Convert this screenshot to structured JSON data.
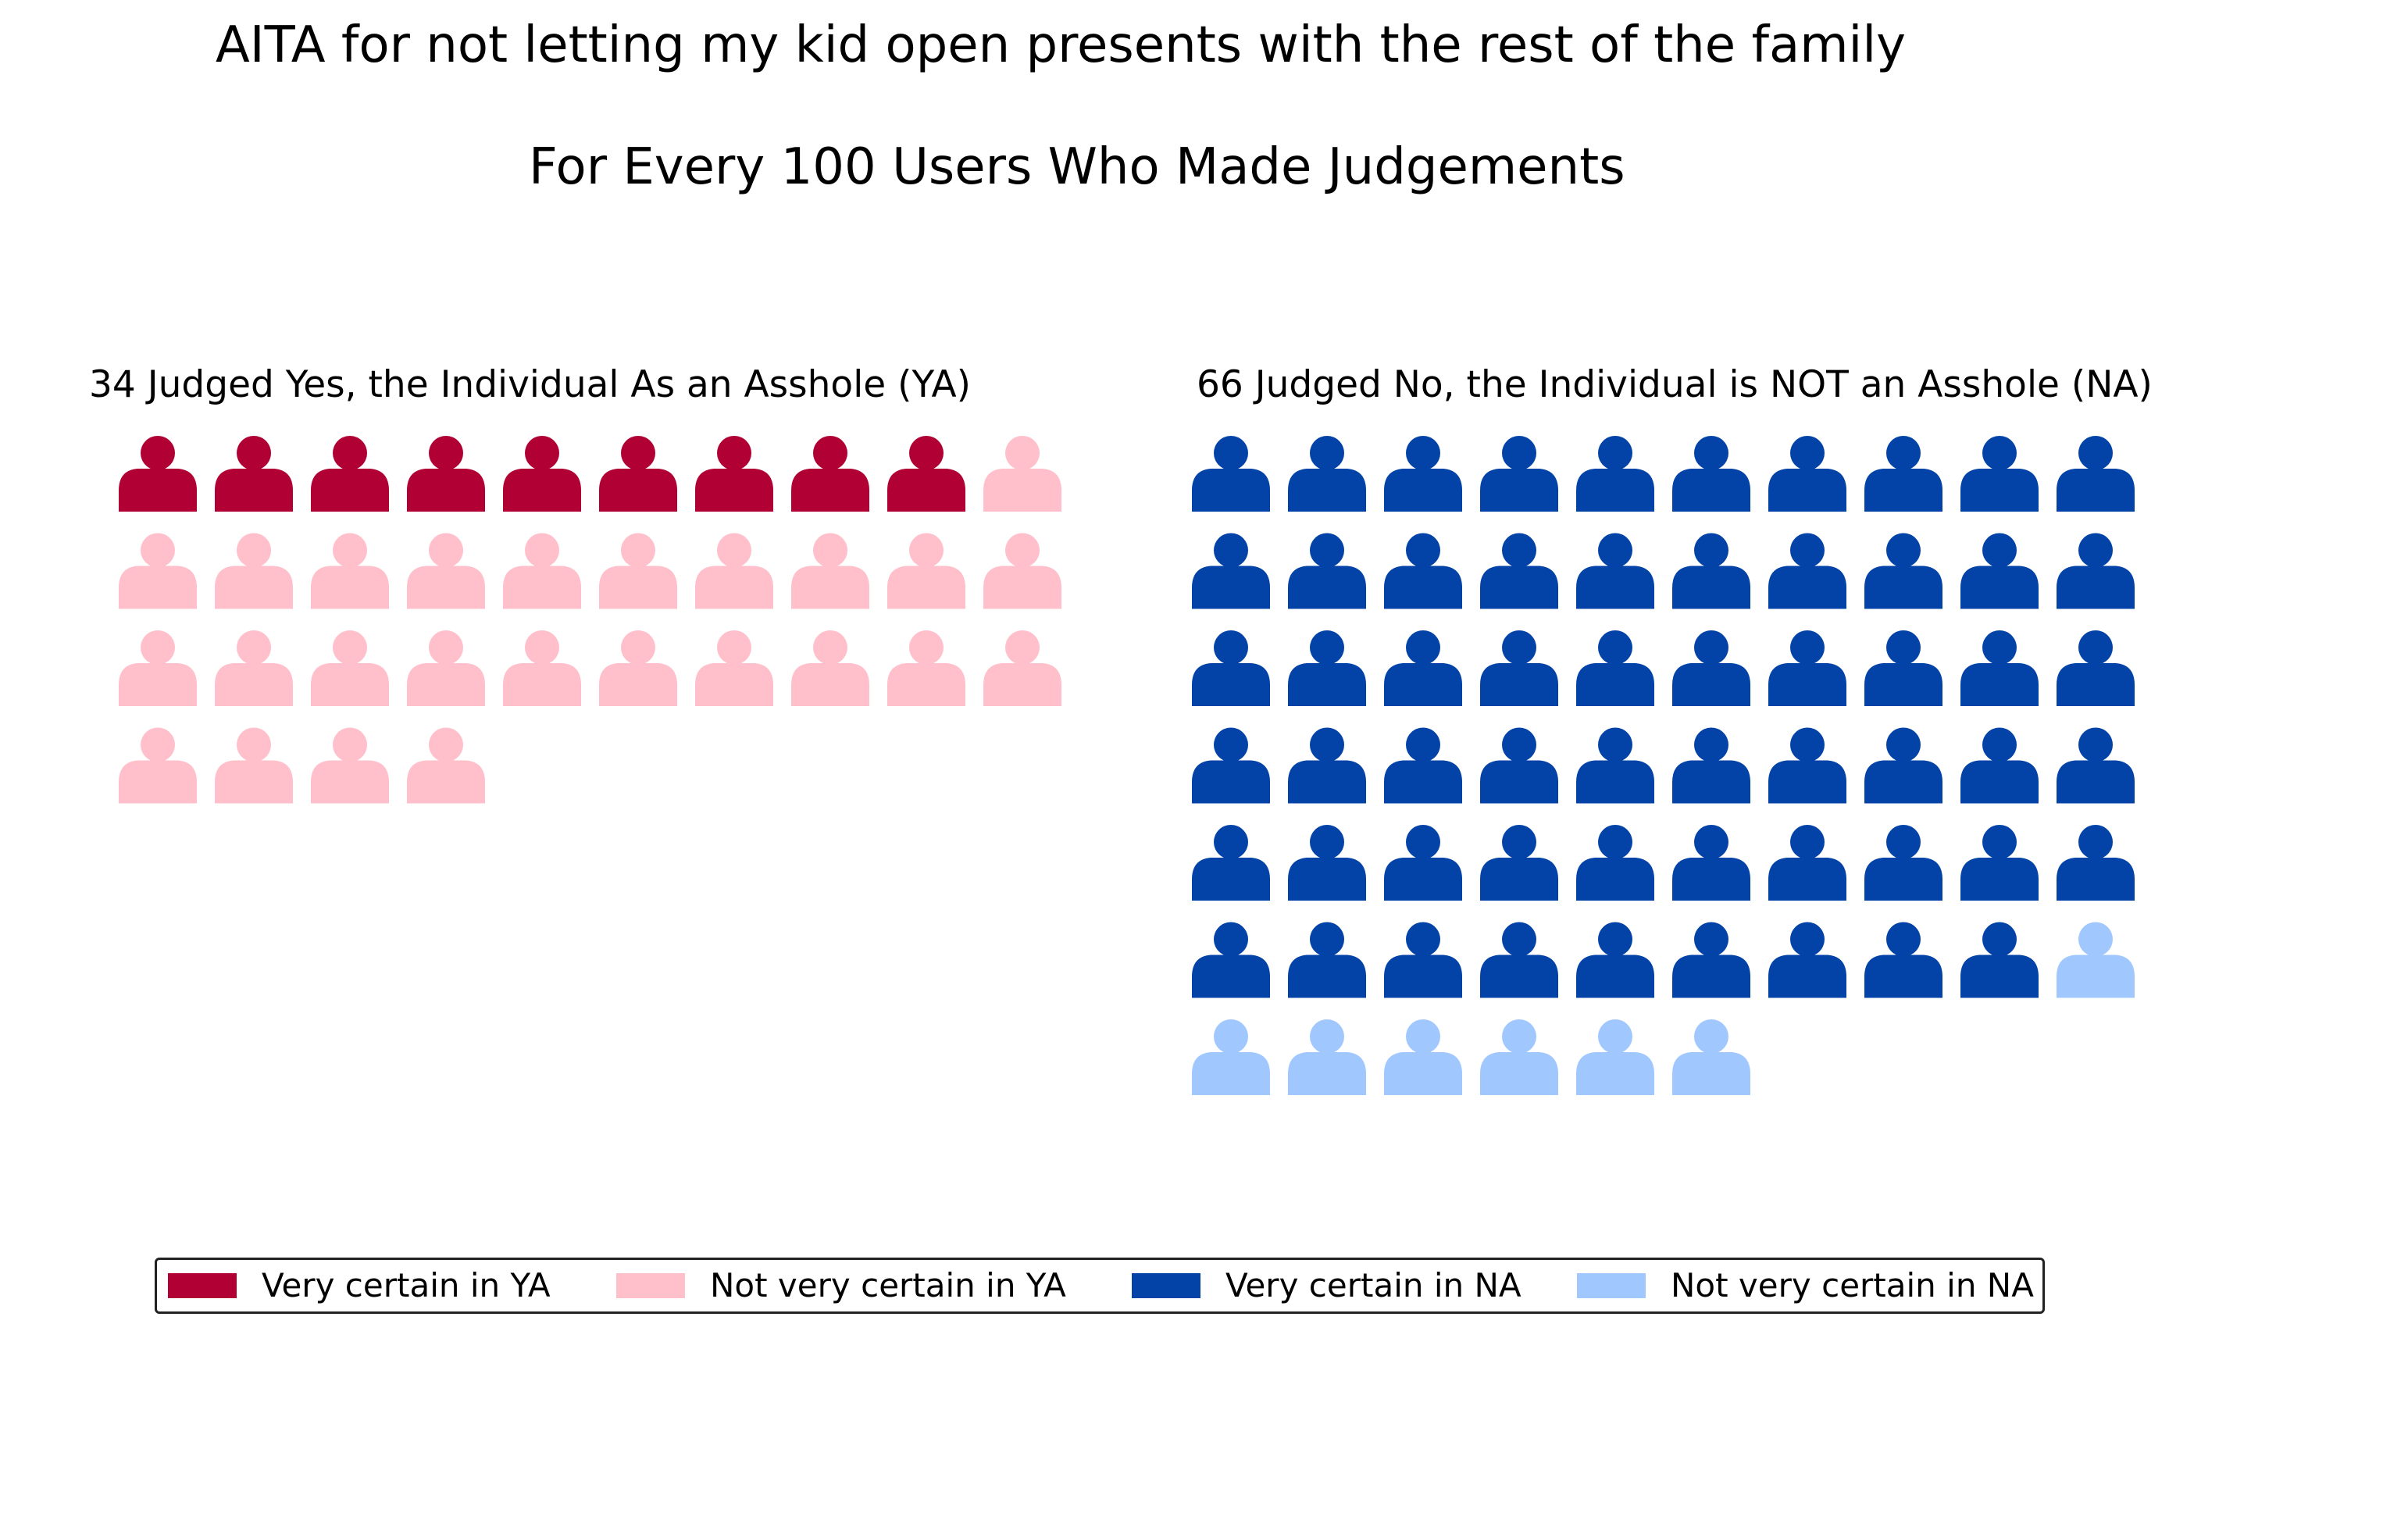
{
  "chart_data": {
    "type": "waffle",
    "title": "AITA for not letting my kid open presents with the rest of the family",
    "subtitle": "For Every 100 Users Who Made Judgements",
    "panels": [
      {
        "title": "34 Judged Yes, the Individual As an Asshole (YA)",
        "total": 34,
        "columns": 10,
        "series": [
          {
            "name": "Very certain in YA",
            "value": 9,
            "color": "#b00034"
          },
          {
            "name": "Not very certain in YA",
            "value": 25,
            "color": "#ffc0cb"
          }
        ]
      },
      {
        "title": "66 Judged No, the Individual is NOT an Asshole (NA)",
        "total": 66,
        "columns": 10,
        "series": [
          {
            "name": "Very certain in NA",
            "value": 59,
            "color": "#0343a8"
          },
          {
            "name": "Not very certain in NA",
            "value": 7,
            "color": "#a0c8ff"
          }
        ]
      }
    ],
    "icon": "person-icon",
    "legend": {
      "placement": "bottom",
      "entries": [
        {
          "label": "Very certain in YA",
          "color": "#b00034"
        },
        {
          "label": "Not very certain in YA",
          "color": "#ffc0cb"
        },
        {
          "label": "Very certain in NA",
          "color": "#0343a8"
        },
        {
          "label": "Not very certain in NA",
          "color": "#a0c8ff"
        }
      ]
    }
  }
}
